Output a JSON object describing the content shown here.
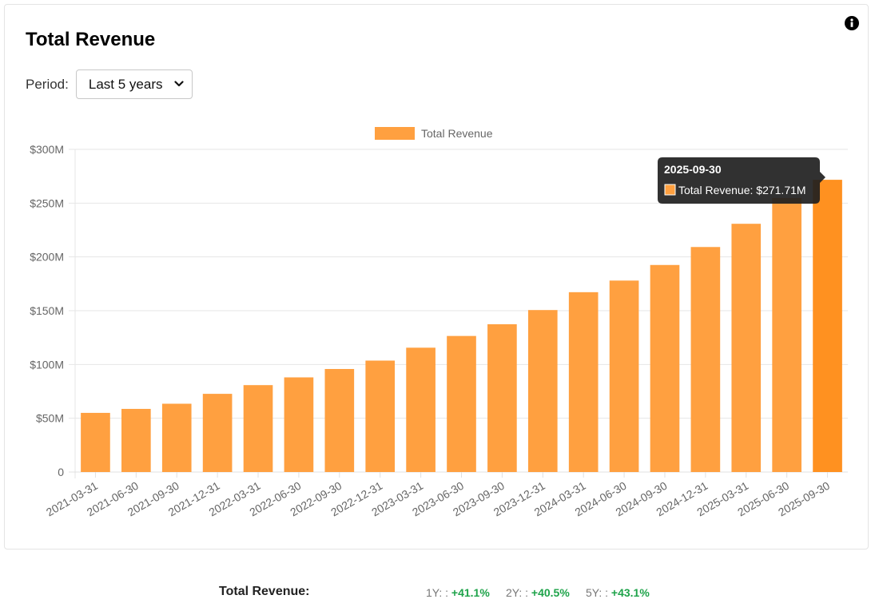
{
  "card": {
    "title": "Total Revenue"
  },
  "period": {
    "label": "Period:",
    "selected": "Last 5 years"
  },
  "chart_data": {
    "type": "bar",
    "title": "Total Revenue",
    "legend": {
      "label": "Total Revenue",
      "position": "top-center"
    },
    "categories": [
      "2021-03-31",
      "2021-06-30",
      "2021-09-30",
      "2021-12-31",
      "2022-03-31",
      "2022-06-30",
      "2022-09-30",
      "2022-12-31",
      "2023-03-31",
      "2023-06-30",
      "2023-09-30",
      "2023-12-31",
      "2024-03-31",
      "2024-06-30",
      "2024-09-30",
      "2024-12-31",
      "2025-03-31",
      "2025-06-30",
      "2025-09-30"
    ],
    "values": [
      55,
      58.7,
      63.5,
      72.7,
      80.8,
      88,
      95.8,
      103.6,
      115.6,
      126.5,
      137.4,
      150.6,
      167.2,
      178,
      192.5,
      209.2,
      230.8,
      254.8,
      271.71
    ],
    "unit": "M",
    "ylim": [
      0,
      300
    ],
    "yticks": [
      0,
      50,
      100,
      150,
      200,
      250,
      300
    ],
    "ytick_labels": [
      "0",
      "$50M",
      "$100M",
      "$150M",
      "$200M",
      "$250M",
      "$300M"
    ],
    "grid": true,
    "bar_color": "#ffa040",
    "highlight_color": "#ff9120",
    "tooltip": {
      "title": "2025-09-30",
      "label": "Total Revenue: $271.71M",
      "index": 18
    }
  },
  "summary": {
    "label": "Total Revenue:",
    "items": [
      {
        "period": "1Y: :",
        "value": "+41.1%"
      },
      {
        "period": "2Y: :",
        "value": "+40.5%"
      },
      {
        "period": "5Y: :",
        "value": "+43.1%"
      }
    ]
  }
}
